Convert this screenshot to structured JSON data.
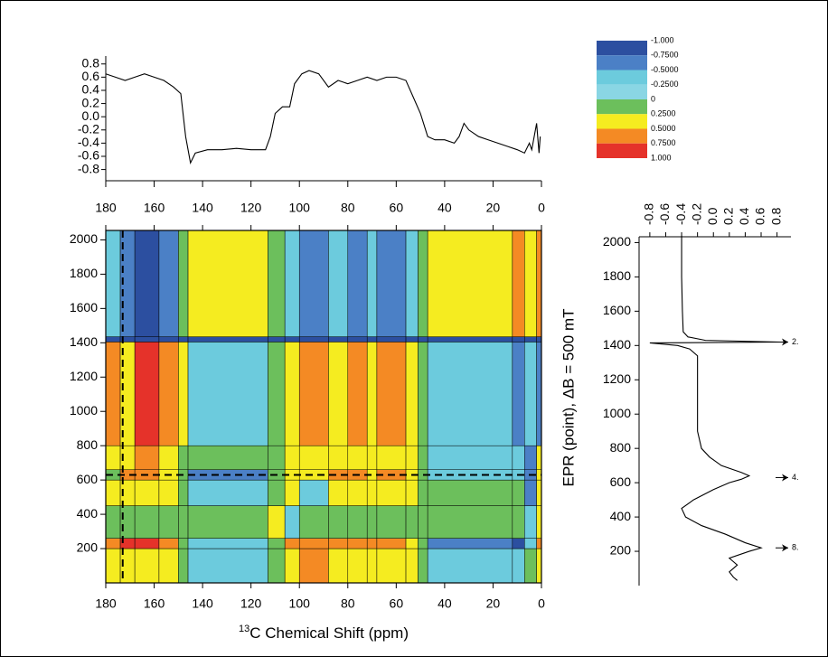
{
  "chart_data": [
    {
      "type": "contour",
      "xlabel_sup": "13",
      "xlabel": "C Chemical Shift (ppm)",
      "ylabel": "EPR (point), ΔB = 500 mT",
      "xlim": [
        180,
        0
      ],
      "ylim": [
        0,
        2055
      ],
      "xticks": [
        180,
        160,
        140,
        120,
        100,
        80,
        60,
        40,
        20,
        0
      ],
      "yticks": [
        200,
        400,
        600,
        800,
        1000,
        1200,
        1400,
        1600,
        1800,
        2000
      ],
      "x_edges": [
        180,
        174,
        168,
        158,
        150,
        146,
        113,
        106,
        100,
        88,
        80,
        72,
        68,
        56,
        51,
        47,
        12,
        7,
        2,
        0
      ],
      "y_edges": [
        0,
        200,
        260,
        450,
        600,
        660,
        800,
        1405,
        1435,
        2055
      ],
      "z": [
        [
          0.3,
          0.3,
          0.3,
          0.3,
          0.1,
          -0.3,
          0.1,
          0.3,
          0.6,
          0.3,
          0.3,
          0.3,
          0.3,
          0.3,
          0.1,
          -0.3,
          -0.3,
          0.1,
          0.3
        ],
        [
          0.6,
          0.8,
          0.8,
          0.6,
          0.1,
          -0.3,
          0.1,
          0.6,
          0.6,
          0.6,
          0.6,
          0.6,
          0.6,
          0.3,
          0.1,
          -0.6,
          -0.8,
          -0.3,
          0.6
        ],
        [
          0.1,
          0.1,
          0.1,
          0.1,
          0.1,
          0.1,
          0.3,
          -0.3,
          0.1,
          0.1,
          0.1,
          0.1,
          0.1,
          0.1,
          0.1,
          0.1,
          0.1,
          -0.3,
          0.3
        ],
        [
          0.3,
          0.3,
          0.3,
          0.3,
          0.1,
          -0.3,
          0.1,
          0.3,
          -0.3,
          0.3,
          0.3,
          0.3,
          0.3,
          0.3,
          0.1,
          0.1,
          0.1,
          -0.6,
          0.3
        ],
        [
          0.1,
          0.6,
          0.6,
          0.3,
          0.1,
          -0.6,
          0.1,
          0.3,
          0.3,
          0.6,
          0.6,
          0.3,
          0.6,
          0.3,
          0.1,
          -0.3,
          -0.3,
          -0.6,
          0.3
        ],
        [
          0.3,
          0.3,
          0.6,
          0.3,
          0.1,
          0.1,
          0.1,
          0.3,
          0.3,
          0.3,
          0.3,
          0.3,
          0.3,
          0.3,
          0.1,
          -0.3,
          -0.3,
          -0.6,
          0.3
        ],
        [
          0.6,
          0.3,
          0.8,
          0.6,
          0.3,
          -0.3,
          0.1,
          0.3,
          0.6,
          0.3,
          0.6,
          0.3,
          0.6,
          0.3,
          0.1,
          -0.3,
          -0.6,
          -0.3,
          -0.6
        ],
        [
          -0.9,
          -0.9,
          -0.9,
          -0.9,
          -0.9,
          -0.9,
          -0.9,
          -0.9,
          -0.9,
          -0.9,
          -0.9,
          -0.9,
          -0.9,
          -0.9,
          -0.9,
          -0.9,
          -0.9,
          -0.9,
          -0.9
        ],
        [
          -0.3,
          -0.6,
          -0.8,
          -0.6,
          0.1,
          0.3,
          0.1,
          -0.3,
          -0.6,
          -0.3,
          -0.6,
          -0.3,
          -0.6,
          -0.3,
          0.1,
          0.3,
          0.6,
          0.3,
          0.6
        ]
      ],
      "levels": [
        {
          "value": -1,
          "label": "-1.000"
        },
        {
          "value": -0.75,
          "label": "-0.7500"
        },
        {
          "value": -0.5,
          "label": "-0.5000"
        },
        {
          "value": -0.25,
          "label": "-0.2500"
        },
        0,
        {
          "value": 0.25,
          "label": "0.2500"
        },
        {
          "value": 0.5,
          "label": "0.5000"
        },
        {
          "value": 0.75,
          "label": "0.7500"
        },
        {
          "value": 1,
          "label": "1.000"
        }
      ],
      "colors": [
        "#2c4fa0",
        "#4b80c6",
        "#6ccbdd",
        "#8ad6e4",
        "#6cbf5c",
        "#f5ec20",
        "#f48a24",
        "#e5322a"
      ],
      "cursor_x": 173,
      "cursor_y": 630
    },
    {
      "type": "line",
      "color": "#000000",
      "x": [
        180,
        176,
        172,
        168,
        164,
        160,
        156,
        152,
        149,
        147,
        145,
        143,
        138,
        132,
        126,
        120,
        114,
        112,
        110,
        107,
        104,
        102,
        99,
        96,
        92,
        88,
        84,
        80,
        76,
        72,
        68,
        64,
        60,
        56,
        53,
        50,
        47,
        44,
        40,
        36,
        34,
        32,
        30,
        26,
        22,
        18,
        14,
        10,
        7,
        5,
        4,
        2,
        1,
        0.5
      ],
      "values": [
        0.65,
        0.6,
        0.55,
        0.6,
        0.65,
        0.6,
        0.55,
        0.45,
        0.35,
        -0.3,
        -0.7,
        -0.55,
        -0.5,
        -0.5,
        -0.48,
        -0.5,
        -0.5,
        -0.3,
        0.05,
        0.15,
        0.15,
        0.5,
        0.65,
        0.7,
        0.65,
        0.45,
        0.55,
        0.5,
        0.55,
        0.6,
        0.55,
        0.6,
        0.6,
        0.55,
        0.3,
        0.05,
        -0.3,
        -0.35,
        -0.35,
        -0.4,
        -0.3,
        -0.1,
        -0.2,
        -0.3,
        -0.35,
        -0.4,
        -0.45,
        -0.5,
        -0.55,
        -0.4,
        -0.5,
        -0.1,
        -0.55,
        -0.3
      ],
      "xlim": [
        180,
        0
      ],
      "ylim": [
        -0.97,
        0.92
      ],
      "yticks": [
        0.8,
        0.6,
        0.4,
        0.2,
        {
          "value": 0,
          "label": "0.0"
        },
        -0.2,
        -0.4,
        -0.6,
        -0.8
      ]
    },
    {
      "type": "vline",
      "color": "#000000",
      "y": [
        2040,
        1800,
        1600,
        1480,
        1450,
        1430,
        1420,
        1415,
        1400,
        1380,
        1340,
        1300,
        1100,
        900,
        800,
        750,
        700,
        660,
        640,
        620,
        600,
        560,
        500,
        450,
        400,
        350,
        300,
        250,
        220,
        200,
        160,
        120,
        80,
        50,
        30
      ],
      "values": [
        -0.4,
        -0.4,
        -0.39,
        -0.38,
        -0.32,
        -0.1,
        0.85,
        -0.8,
        -0.45,
        -0.3,
        -0.2,
        -0.2,
        -0.2,
        -0.2,
        -0.15,
        -0.05,
        0.1,
        0.35,
        0.45,
        0.35,
        0.2,
        0,
        -0.25,
        -0.4,
        -0.35,
        -0.15,
        0.15,
        0.4,
        0.6,
        0.45,
        0.2,
        0.3,
        0.2,
        0.25,
        0.3
      ],
      "xlim": [
        -0.935,
        0.975
      ],
      "ylim": [
        0,
        2055
      ],
      "xticks": [
        -0.8,
        -0.6,
        -0.4,
        -0.2,
        {
          "value": 0,
          "label": "0.0"
        },
        0.2,
        0.4,
        0.6,
        0.8
      ],
      "yticks": [
        200,
        400,
        600,
        800,
        1000,
        1200,
        1400,
        1600,
        1800,
        2000
      ],
      "annotations": [
        {
          "y": 1420,
          "label": "2."
        },
        {
          "y": 630,
          "label": "4."
        },
        {
          "y": 220,
          "label": "8."
        }
      ]
    }
  ]
}
